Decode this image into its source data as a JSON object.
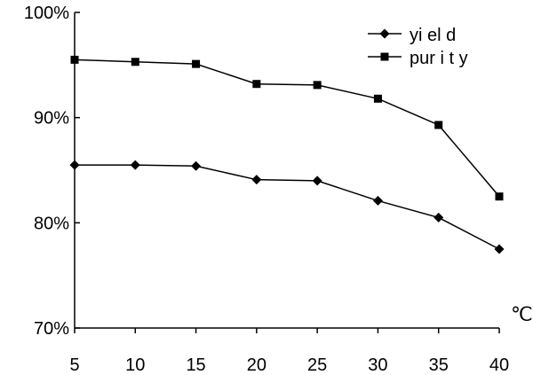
{
  "chart_data": {
    "type": "line",
    "title": "",
    "xlabel": "℃",
    "ylabel": "",
    "x": [
      5,
      10,
      15,
      20,
      25,
      30,
      35,
      40
    ],
    "x_ticks": [
      "5",
      "10",
      "15",
      "20",
      "25",
      "30",
      "35",
      "40"
    ],
    "y_ticks": [
      "70%",
      "80%",
      "90%",
      "100%"
    ],
    "ylim": [
      70,
      100
    ],
    "grid": false,
    "legend_position": "top-right",
    "series": [
      {
        "name": "yi el d",
        "marker": "diamond",
        "color": "#000000",
        "values": [
          85.5,
          85.5,
          85.4,
          84.1,
          84.0,
          82.1,
          80.5,
          77.5
        ]
      },
      {
        "name": "pur i t y",
        "marker": "square",
        "color": "#000000",
        "values": [
          95.5,
          95.3,
          95.1,
          93.2,
          93.1,
          91.8,
          89.3,
          82.5
        ]
      }
    ]
  }
}
